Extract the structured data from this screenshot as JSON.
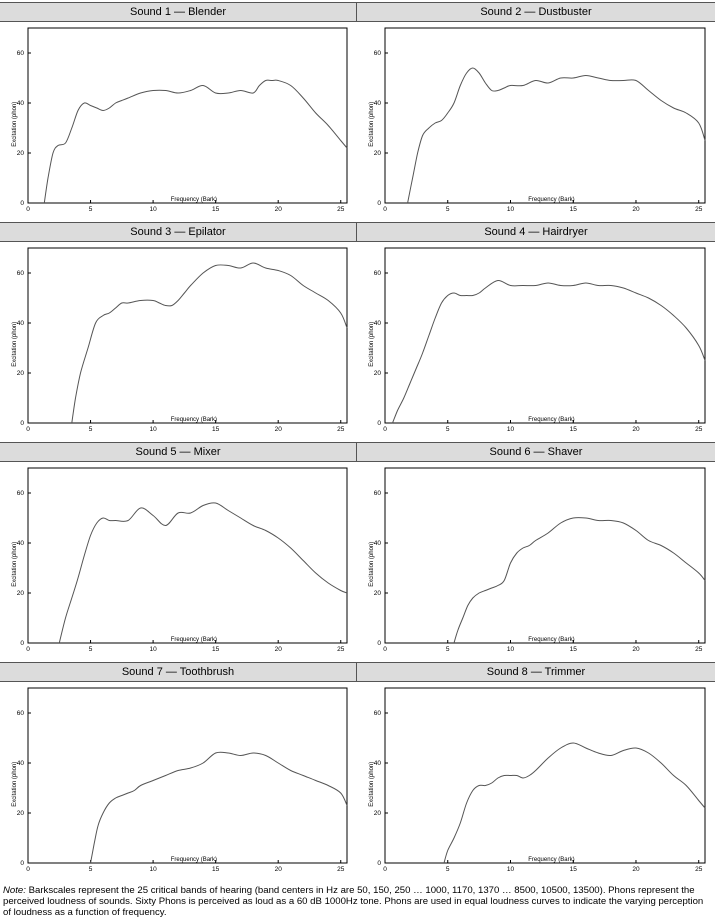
{
  "figure": {
    "note_label": "Note:",
    "note_text": "Barkscales represent the 25 critical bands of hearing (band centers in Hz are 50, 150, 250 … 1000, 1170, 1370 … 8500, 10500, 13500). Phons represent the perceived loudness of sounds. Sixty Phons is perceived as loud as a 60 dB 1000Hz tone. Phons are used in equal loudness curves to indicate the varying perception of loudness as a function of frequency."
  },
  "chart_data": [
    {
      "type": "line",
      "title": "Sound 1 — Blender",
      "xlabel": "Frequency (Bark)",
      "ylabel": "Excitation (phon)",
      "xlim": [
        0,
        25.5
      ],
      "ylim": [
        0,
        70
      ],
      "xticks": [
        0,
        5,
        10,
        15,
        20,
        25
      ],
      "yticks": [
        0,
        20,
        40,
        60
      ],
      "grid": false,
      "series": [
        {
          "x": [
            1.3,
            1.6,
            2.0,
            2.4,
            3.0,
            3.5,
            4.0,
            4.5,
            5.0,
            5.5,
            6.0,
            6.5,
            7.0,
            7.5,
            8.0,
            9.0,
            10.0,
            11.0,
            12.0,
            13.0,
            14.0,
            15.0,
            16.0,
            17.0,
            18.0,
            18.5,
            19.0,
            19.5,
            20.0,
            21.0,
            22.0,
            23.0,
            24.0,
            25.0,
            25.5
          ],
          "y": [
            0,
            10,
            20,
            23,
            24,
            30,
            37,
            40,
            39,
            38,
            37,
            38,
            40,
            41,
            42,
            44,
            45,
            45,
            44,
            45,
            47,
            44,
            44,
            45,
            44,
            47,
            49,
            49,
            49,
            47,
            42,
            36,
            31,
            25,
            22
          ]
        }
      ]
    },
    {
      "type": "line",
      "title": "Sound 2 — Dustbuster",
      "xlabel": "Frequency (Bark)",
      "ylabel": "Excitation (phon)",
      "xlim": [
        0,
        25.5
      ],
      "ylim": [
        0,
        70
      ],
      "xticks": [
        0,
        5,
        10,
        15,
        20,
        25
      ],
      "yticks": [
        0,
        20,
        40,
        60
      ],
      "grid": false,
      "series": [
        {
          "x": [
            1.8,
            2.2,
            2.6,
            3.0,
            3.5,
            4.0,
            4.5,
            5.0,
            5.5,
            6.0,
            6.5,
            7.0,
            7.5,
            8.0,
            8.5,
            9.0,
            9.5,
            10.0,
            11.0,
            12.0,
            13.0,
            14.0,
            15.0,
            16.0,
            17.0,
            18.0,
            19.0,
            20.0,
            21.0,
            22.0,
            23.0,
            24.0,
            25.0,
            25.5
          ],
          "y": [
            0,
            10,
            20,
            27,
            30,
            32,
            33,
            36,
            40,
            47,
            52,
            54,
            52,
            48,
            45,
            45,
            46,
            47,
            47,
            49,
            48,
            50,
            50,
            51,
            50,
            49,
            49,
            49,
            45,
            41,
            38,
            36,
            32,
            25
          ]
        }
      ]
    },
    {
      "type": "line",
      "title": "Sound 3 — Epilator",
      "xlabel": "Frequency (Bark)",
      "ylabel": "Excitation (phon)",
      "xlim": [
        0,
        25.5
      ],
      "ylim": [
        0,
        70
      ],
      "xticks": [
        0,
        5,
        10,
        15,
        20,
        25
      ],
      "yticks": [
        0,
        20,
        40,
        60
      ],
      "grid": false,
      "series": [
        {
          "x": [
            3.5,
            3.8,
            4.2,
            4.8,
            5.4,
            6.0,
            6.5,
            7.0,
            7.5,
            8.0,
            9.0,
            10.0,
            10.5,
            11.0,
            11.5,
            12.0,
            12.5,
            13.0,
            14.0,
            15.0,
            16.0,
            17.0,
            18.0,
            19.0,
            20.0,
            21.0,
            22.0,
            23.0,
            24.0,
            25.0,
            25.5
          ],
          "y": [
            0,
            10,
            20,
            30,
            40,
            43,
            44,
            46,
            48,
            48,
            49,
            49,
            48,
            47,
            47,
            49,
            52,
            55,
            60,
            63,
            63,
            62,
            64,
            62,
            61,
            59,
            55,
            52,
            49,
            44,
            38
          ]
        }
      ]
    },
    {
      "type": "line",
      "title": "Sound 4 — Hairdryer",
      "xlabel": "Frequency (Bark)",
      "ylabel": "Excitation (phon)",
      "xlim": [
        0,
        25.5
      ],
      "ylim": [
        0,
        70
      ],
      "xticks": [
        0,
        5,
        10,
        15,
        20,
        25
      ],
      "yticks": [
        0,
        20,
        40,
        60
      ],
      "grid": false,
      "series": [
        {
          "x": [
            0.6,
            1.0,
            1.5,
            2.0,
            2.5,
            3.0,
            3.5,
            4.0,
            4.5,
            5.0,
            5.5,
            6.0,
            6.5,
            7.0,
            7.5,
            8.0,
            9.0,
            10.0,
            11.0,
            12.0,
            13.0,
            14.0,
            15.0,
            16.0,
            17.0,
            18.0,
            19.0,
            20.0,
            21.0,
            22.0,
            23.0,
            24.0,
            25.0,
            25.5
          ],
          "y": [
            0,
            5,
            10,
            16,
            22,
            28,
            35,
            42,
            48,
            51,
            52,
            51,
            51,
            51,
            52,
            54,
            57,
            55,
            55,
            55,
            56,
            55,
            55,
            56,
            55,
            55,
            54,
            52,
            50,
            47,
            43,
            38,
            31,
            25
          ]
        }
      ]
    },
    {
      "type": "line",
      "title": "Sound 5 — Mixer",
      "xlabel": "Frequency (Bark)",
      "ylabel": "Excitation (phon)",
      "xlim": [
        0,
        25.5
      ],
      "ylim": [
        0,
        70
      ],
      "xticks": [
        0,
        5,
        10,
        15,
        20,
        25
      ],
      "yticks": [
        0,
        20,
        40,
        60
      ],
      "grid": false,
      "series": [
        {
          "x": [
            2.5,
            3.0,
            3.5,
            4.0,
            4.5,
            5.0,
            5.5,
            6.0,
            6.5,
            7.0,
            8.0,
            9.0,
            10.0,
            11.0,
            12.0,
            13.0,
            14.0,
            15.0,
            16.0,
            17.0,
            18.0,
            19.0,
            20.0,
            21.0,
            22.0,
            23.0,
            24.0,
            25.0,
            25.5
          ],
          "y": [
            0,
            10,
            18,
            26,
            35,
            43,
            48,
            50,
            49,
            49,
            49,
            54,
            51,
            47,
            52,
            52,
            55,
            56,
            53,
            50,
            47,
            45,
            42,
            38,
            33,
            28,
            24,
            21,
            20
          ]
        }
      ]
    },
    {
      "type": "line",
      "title": "Sound 6 — Shaver",
      "xlabel": "Frequency (Bark)",
      "ylabel": "Excitation (phon)",
      "xlim": [
        0,
        25.5
      ],
      "ylim": [
        0,
        70
      ],
      "xticks": [
        0,
        5,
        10,
        15,
        20,
        25
      ],
      "yticks": [
        0,
        20,
        40,
        60
      ],
      "grid": false,
      "series": [
        {
          "x": [
            5.5,
            5.8,
            6.2,
            6.6,
            7.0,
            7.5,
            8.0,
            8.5,
            9.0,
            9.5,
            10.0,
            10.5,
            11.0,
            11.5,
            12.0,
            13.0,
            14.0,
            15.0,
            16.0,
            17.0,
            18.0,
            19.0,
            20.0,
            21.0,
            22.0,
            23.0,
            24.0,
            25.0,
            25.5
          ],
          "y": [
            0,
            5,
            10,
            15,
            18,
            20,
            21,
            22,
            23,
            25,
            32,
            36,
            38,
            39,
            41,
            44,
            48,
            50,
            50,
            49,
            49,
            48,
            45,
            41,
            39,
            36,
            32,
            28,
            25
          ]
        }
      ]
    },
    {
      "type": "line",
      "title": "Sound 7 — Toothbrush",
      "xlabel": "Frequency (Bark)",
      "ylabel": "Excitation (phon)",
      "xlim": [
        0,
        25.5
      ],
      "ylim": [
        0,
        70
      ],
      "xticks": [
        0,
        5,
        10,
        15,
        20,
        25
      ],
      "yticks": [
        0,
        20,
        40,
        60
      ],
      "grid": false,
      "series": [
        {
          "x": [
            5.0,
            5.3,
            5.6,
            6.0,
            6.5,
            7.0,
            7.5,
            8.0,
            8.5,
            9.0,
            10.0,
            11.0,
            12.0,
            13.0,
            14.0,
            15.0,
            16.0,
            17.0,
            18.0,
            19.0,
            20.0,
            21.0,
            22.0,
            23.0,
            24.0,
            25.0,
            25.5
          ],
          "y": [
            0,
            8,
            15,
            20,
            24,
            26,
            27,
            28,
            29,
            31,
            33,
            35,
            37,
            38,
            40,
            44,
            44,
            43,
            44,
            43,
            40,
            37,
            35,
            33,
            31,
            28,
            23
          ]
        }
      ]
    },
    {
      "type": "line",
      "title": "Sound 8 — Trimmer",
      "xlabel": "Frequency (Bark)",
      "ylabel": "Excitation (phon)",
      "xlim": [
        0,
        25.5
      ],
      "ylim": [
        0,
        70
      ],
      "xticks": [
        0,
        5,
        10,
        15,
        20,
        25
      ],
      "yticks": [
        0,
        20,
        40,
        60
      ],
      "grid": false,
      "series": [
        {
          "x": [
            4.7,
            5.0,
            5.5,
            6.0,
            6.5,
            7.0,
            7.5,
            8.0,
            8.5,
            9.0,
            9.5,
            10.0,
            10.5,
            11.0,
            11.5,
            12.0,
            13.0,
            14.0,
            15.0,
            16.0,
            17.0,
            18.0,
            19.0,
            20.0,
            21.0,
            22.0,
            23.0,
            24.0,
            25.0,
            25.5
          ],
          "y": [
            0,
            5,
            10,
            16,
            24,
            29,
            31,
            31,
            32,
            34,
            35,
            35,
            35,
            34,
            35,
            37,
            42,
            46,
            48,
            46,
            44,
            43,
            45,
            46,
            44,
            40,
            35,
            31,
            25,
            22
          ]
        }
      ]
    }
  ]
}
